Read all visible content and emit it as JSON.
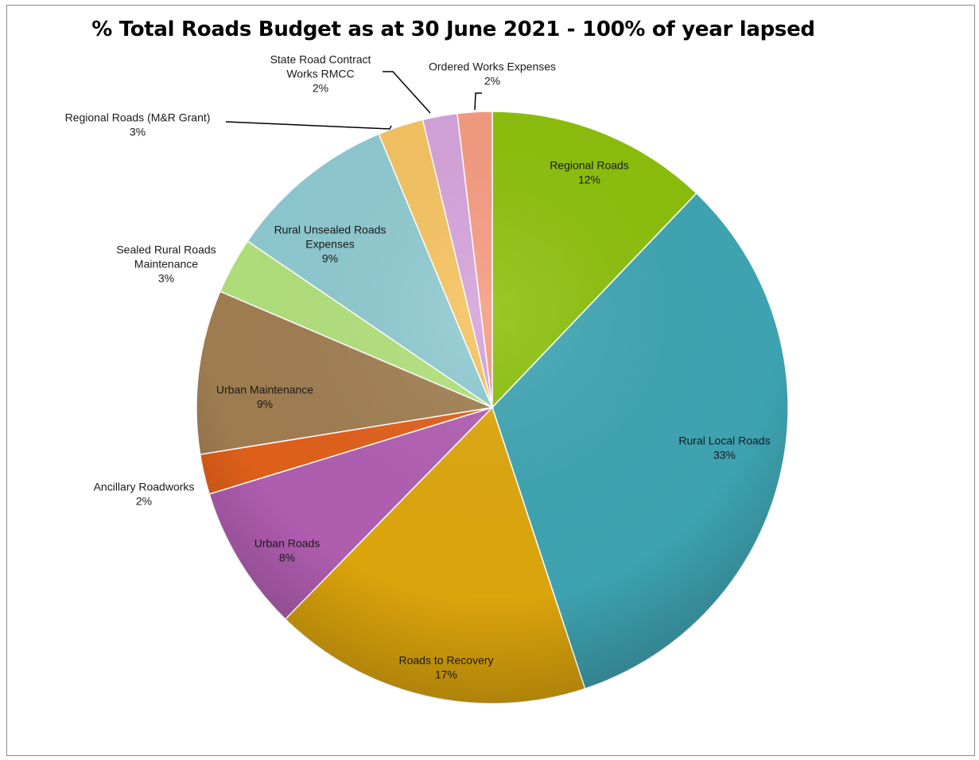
{
  "chart_data": {
    "type": "pie",
    "title": "% Total Roads Budget as at 30 June 2021 - 100% of year lapsed",
    "slices": [
      {
        "label": [
          "Regional Roads"
        ],
        "percent_label": "12%",
        "value": 12.2,
        "color": "#8cc10a"
      },
      {
        "label": [
          "Rural Local Roads"
        ],
        "percent_label": "33%",
        "value": 33.0,
        "color": "#3fa6b4"
      },
      {
        "label": [
          "Roads to Recovery"
        ],
        "percent_label": "17%",
        "value": 17.5,
        "color": "#e0a80c"
      },
      {
        "label": [
          "Urban Roads"
        ],
        "percent_label": "8%",
        "value": 8.0,
        "color": "#b35fb3"
      },
      {
        "label": [
          "Ancillary Roadworks"
        ],
        "percent_label": "2%",
        "value": 2.2,
        "color": "#e3611a"
      },
      {
        "label": [
          "Urban Maintenance"
        ],
        "percent_label": "9%",
        "value": 9.0,
        "color": "#a27f52"
      },
      {
        "label": [
          "Sealed Rural Roads",
          "Maintenance"
        ],
        "percent_label": "3%",
        "value": 3.1,
        "color": "#b3e27c"
      },
      {
        "label": [
          "Rural Unsealed Roads",
          "Expenses"
        ],
        "percent_label": "9%",
        "value": 9.3,
        "color": "#8fcbd2"
      },
      {
        "label": [
          "Regional Roads (M&R Grant)"
        ],
        "percent_label": "3%",
        "value": 2.5,
        "color": "#f7c460"
      },
      {
        "label": [
          "State Road Contract",
          "Works RMCC"
        ],
        "percent_label": "2%",
        "value": 1.9,
        "color": "#d6a4dc"
      },
      {
        "label": [
          "Ordered Works Expenses"
        ],
        "percent_label": "2%",
        "value": 1.9,
        "color": "#f69c80"
      }
    ]
  }
}
